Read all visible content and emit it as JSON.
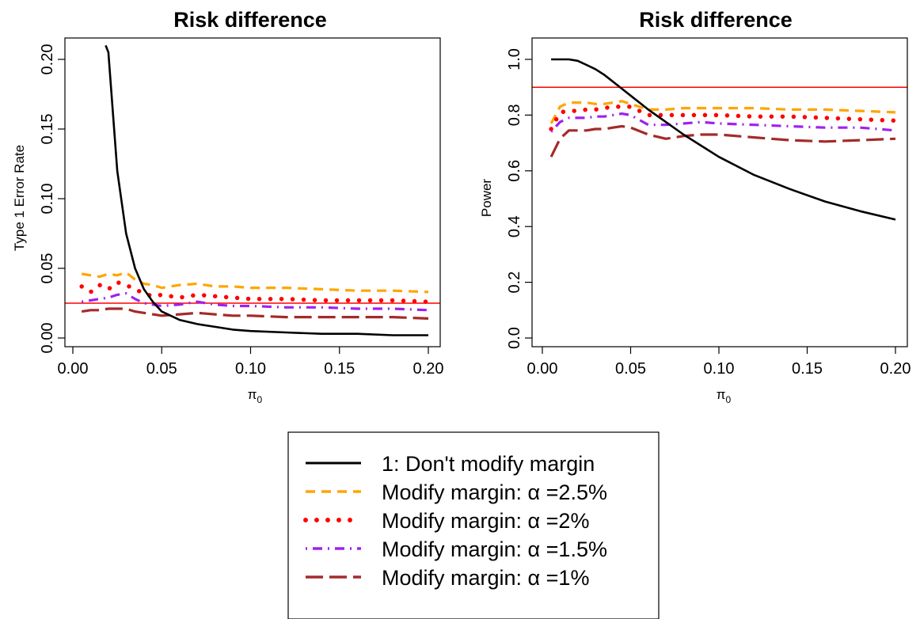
{
  "chart_data": [
    {
      "type": "line",
      "title": "Risk difference",
      "xlabel": "π",
      "xlabel_sub": "0",
      "ylabel": "Type 1 Error Rate",
      "xlim": [
        0.0,
        0.2
      ],
      "ylim": [
        0.0,
        0.2
      ],
      "xticks": [
        "0.00",
        "0.05",
        "0.10",
        "0.15",
        "0.20"
      ],
      "yticks": [
        "0.00",
        "0.05",
        "0.10",
        "0.15",
        "0.20"
      ],
      "grid": false,
      "reference_line": {
        "y": 0.025,
        "color": "#ff0000"
      },
      "x": [
        0.005,
        0.01,
        0.015,
        0.02,
        0.025,
        0.03,
        0.035,
        0.04,
        0.045,
        0.05,
        0.06,
        0.07,
        0.08,
        0.09,
        0.1,
        0.12,
        0.14,
        0.16,
        0.18,
        0.2
      ],
      "series": [
        {
          "name": "1: Don't modify margin",
          "color": "#000000",
          "values": [
            null,
            null,
            null,
            0.205,
            0.12,
            0.075,
            0.05,
            0.035,
            0.026,
            0.019,
            0.013,
            0.01,
            0.008,
            0.006,
            0.005,
            0.004,
            0.003,
            0.003,
            0.002,
            0.002
          ]
        },
        {
          "name": "Modify margin: α =2.5%",
          "color": "#ffa500",
          "values": [
            0.046,
            0.045,
            0.044,
            0.046,
            0.045,
            0.047,
            0.042,
            0.039,
            0.038,
            0.036,
            0.038,
            0.039,
            0.037,
            0.037,
            0.036,
            0.036,
            0.035,
            0.034,
            0.034,
            0.033
          ]
        },
        {
          "name": "Modify margin: α =2%",
          "color": "#ff0000",
          "values": [
            0.037,
            0.033,
            0.038,
            0.035,
            0.04,
            0.038,
            0.035,
            0.032,
            0.03,
            0.031,
            0.029,
            0.031,
            0.03,
            0.029,
            0.028,
            0.028,
            0.027,
            0.027,
            0.027,
            0.026
          ]
        },
        {
          "name": "Modify margin: α =1.5%",
          "color": "#a020f0",
          "values": [
            0.026,
            0.027,
            0.028,
            0.029,
            0.031,
            0.032,
            0.028,
            0.025,
            0.024,
            0.023,
            0.024,
            0.026,
            0.024,
            0.023,
            0.023,
            0.022,
            0.022,
            0.021,
            0.021,
            0.02
          ]
        },
        {
          "name": "Modify margin: α =1%",
          "color": "#a52a2a",
          "values": [
            0.019,
            0.02,
            0.02,
            0.021,
            0.021,
            0.021,
            0.019,
            0.018,
            0.017,
            0.016,
            0.017,
            0.018,
            0.017,
            0.016,
            0.016,
            0.015,
            0.015,
            0.015,
            0.015,
            0.014
          ]
        }
      ]
    },
    {
      "type": "line",
      "title": "Risk difference",
      "xlabel": "π",
      "xlabel_sub": "0",
      "ylabel": "Power",
      "xlim": [
        0.0,
        0.2
      ],
      "ylim": [
        0.0,
        1.0
      ],
      "xticks": [
        "0.00",
        "0.05",
        "0.10",
        "0.15",
        "0.20"
      ],
      "yticks": [
        "0.0",
        "0.2",
        "0.4",
        "0.6",
        "0.8",
        "1.0"
      ],
      "grid": false,
      "reference_line": {
        "y": 0.9,
        "color": "#ff0000"
      },
      "x": [
        0.005,
        0.01,
        0.015,
        0.02,
        0.025,
        0.03,
        0.035,
        0.04,
        0.045,
        0.05,
        0.06,
        0.07,
        0.08,
        0.09,
        0.1,
        0.12,
        0.14,
        0.16,
        0.18,
        0.2
      ],
      "series": [
        {
          "name": "1: Don't modify margin",
          "color": "#000000",
          "values": [
            1.0,
            1.0,
            1.0,
            0.995,
            0.98,
            0.965,
            0.945,
            0.92,
            0.895,
            0.87,
            0.82,
            0.775,
            0.73,
            0.69,
            0.65,
            0.585,
            0.535,
            0.49,
            0.455,
            0.425
          ]
        },
        {
          "name": "Modify margin: α =2.5%",
          "color": "#ffa500",
          "values": [
            0.77,
            0.83,
            0.845,
            0.845,
            0.845,
            0.84,
            0.84,
            0.845,
            0.85,
            0.84,
            0.82,
            0.82,
            0.825,
            0.825,
            0.825,
            0.825,
            0.82,
            0.82,
            0.815,
            0.81
          ]
        },
        {
          "name": "Modify margin: α =2%",
          "color": "#ff0000",
          "values": [
            0.75,
            0.81,
            0.815,
            0.815,
            0.82,
            0.82,
            0.825,
            0.83,
            0.83,
            0.83,
            0.8,
            0.8,
            0.8,
            0.8,
            0.8,
            0.795,
            0.795,
            0.79,
            0.785,
            0.78
          ]
        },
        {
          "name": "Modify margin: α =1.5%",
          "color": "#a020f0",
          "values": [
            0.74,
            0.775,
            0.79,
            0.79,
            0.79,
            0.795,
            0.795,
            0.8,
            0.805,
            0.8,
            0.765,
            0.765,
            0.77,
            0.775,
            0.77,
            0.765,
            0.76,
            0.755,
            0.755,
            0.745
          ]
        },
        {
          "name": "Modify margin: α =1%",
          "color": "#a52a2a",
          "values": [
            0.65,
            0.715,
            0.745,
            0.745,
            0.745,
            0.75,
            0.75,
            0.755,
            0.76,
            0.755,
            0.73,
            0.715,
            0.725,
            0.73,
            0.73,
            0.72,
            0.71,
            0.705,
            0.71,
            0.715
          ]
        }
      ]
    }
  ],
  "legend": {
    "placement": "bottom-center",
    "entries": [
      {
        "label": "1: Don't modify margin",
        "color": "#000000",
        "style": "solid"
      },
      {
        "label": "Modify margin: α =2.5%",
        "color": "#ffa500",
        "style": "dashed"
      },
      {
        "label": "Modify margin: α =2%",
        "color": "#ff0000",
        "style": "dotted"
      },
      {
        "label": "Modify margin: α =1.5%",
        "color": "#a020f0",
        "style": "dotdash"
      },
      {
        "label": "Modify margin: α =1%",
        "color": "#a52a2a",
        "style": "longdash"
      }
    ]
  }
}
